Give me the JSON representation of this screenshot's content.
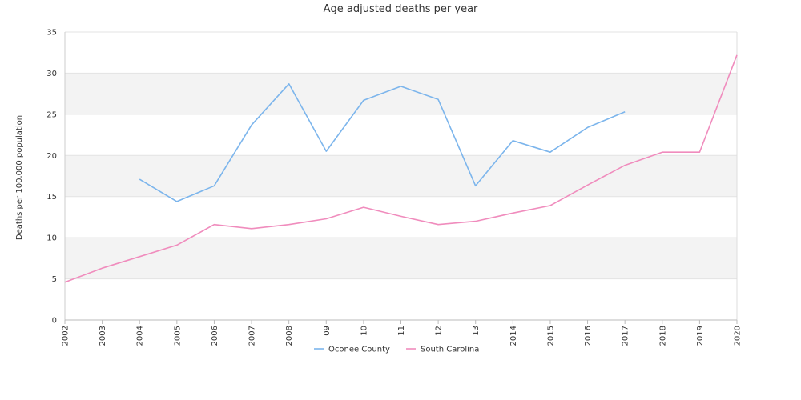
{
  "chart_data": {
    "type": "line",
    "title": "Age adjusted deaths per year",
    "xlabel": "",
    "ylabel": "Deaths per 100,000 population",
    "categories": [
      "2002",
      "2003",
      "2004",
      "2005",
      "2006",
      "2007",
      "2008",
      "09",
      "10",
      "11",
      "12",
      "13",
      "2014",
      "2015",
      "2016",
      "2017",
      "2018",
      "2019",
      "2020"
    ],
    "yticks": [
      "0",
      "5",
      "10",
      "15",
      "20",
      "25",
      "30",
      "35"
    ],
    "ylim": [
      0,
      35
    ],
    "grid": "alternating horizontal bands",
    "legend_position": "bottom",
    "series": [
      {
        "name": "Oconee County",
        "color": "#7cb5ec",
        "values": [
          null,
          null,
          17.1,
          14.4,
          16.3,
          23.7,
          28.7,
          20.5,
          26.7,
          28.4,
          26.8,
          16.3,
          21.8,
          20.4,
          23.4,
          25.3,
          null,
          null,
          null
        ]
      },
      {
        "name": "South Carolina",
        "color": "#f08cbd",
        "values": [
          4.6,
          6.3,
          7.7,
          9.1,
          11.6,
          11.1,
          11.6,
          12.3,
          13.7,
          12.6,
          11.6,
          12.0,
          13.0,
          13.9,
          16.4,
          18.8,
          20.4,
          20.4,
          32.2
        ]
      }
    ]
  }
}
